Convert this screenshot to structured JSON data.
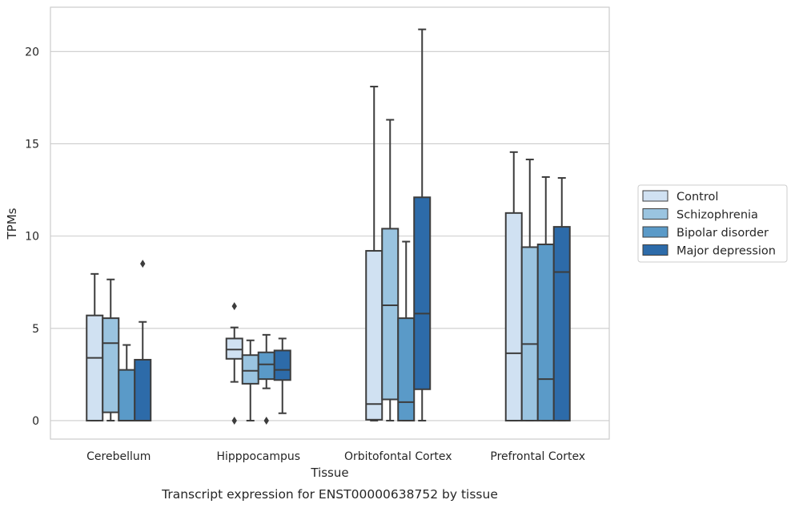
{
  "chart_data": {
    "type": "box",
    "caption": "Transcript expression for ENST00000638752 by tissue",
    "xlabel": "Tissue",
    "ylabel": "TPMs",
    "ylim": [
      -1,
      22.4
    ],
    "yticks": [
      0,
      5,
      10,
      15,
      20
    ],
    "grid": "horizontal",
    "legend_position": "right",
    "categories": [
      "Cerebellum",
      "Hipppocampus",
      "Orbitofontal Cortex",
      "Prefrontal Cortex"
    ],
    "series": [
      {
        "name": "Control",
        "color": "#d0e1f2",
        "boxes": [
          {
            "whislo": 0,
            "q1": 0,
            "med": 3.4,
            "q3": 5.7,
            "whishi": 7.95,
            "fliers": []
          },
          {
            "whislo": 2.1,
            "q1": 3.35,
            "med": 3.85,
            "q3": 4.45,
            "whishi": 5.05,
            "fliers": [
              0,
              6.2
            ]
          },
          {
            "whislo": 0,
            "q1": 0.05,
            "med": 0.9,
            "q3": 9.2,
            "whishi": 18.1,
            "fliers": []
          },
          {
            "whislo": 0,
            "q1": 0,
            "med": 3.65,
            "q3": 11.25,
            "whishi": 14.55,
            "fliers": []
          }
        ]
      },
      {
        "name": "Schizophrenia",
        "color": "#9ac4e0",
        "boxes": [
          {
            "whislo": 0,
            "q1": 0.45,
            "med": 4.2,
            "q3": 5.55,
            "whishi": 7.65,
            "fliers": []
          },
          {
            "whislo": 0,
            "q1": 2.0,
            "med": 2.7,
            "q3": 3.55,
            "whishi": 4.35,
            "fliers": []
          },
          {
            "whislo": 0,
            "q1": 1.15,
            "med": 6.25,
            "q3": 10.4,
            "whishi": 16.3,
            "fliers": []
          },
          {
            "whislo": 0,
            "q1": 0,
            "med": 4.15,
            "q3": 9.4,
            "whishi": 14.15,
            "fliers": []
          }
        ]
      },
      {
        "name": "Bipolar disorder",
        "color": "#5a9ac8",
        "boxes": [
          {
            "whislo": 0,
            "q1": 0,
            "med": 0,
            "q3": 2.75,
            "whishi": 4.1,
            "fliers": []
          },
          {
            "whislo": 1.75,
            "q1": 2.25,
            "med": 3.05,
            "q3": 3.7,
            "whishi": 4.65,
            "fliers": [
              0
            ]
          },
          {
            "whislo": 0,
            "q1": 0,
            "med": 1.0,
            "q3": 5.55,
            "whishi": 9.7,
            "fliers": []
          },
          {
            "whislo": 0,
            "q1": 0,
            "med": 2.25,
            "q3": 9.55,
            "whishi": 13.2,
            "fliers": []
          }
        ]
      },
      {
        "name": "Major depression",
        "color": "#2d6ba9",
        "boxes": [
          {
            "whislo": 0,
            "q1": 0,
            "med": 0,
            "q3": 3.3,
            "whishi": 5.35,
            "fliers": [
              8.5
            ]
          },
          {
            "whislo": 0.4,
            "q1": 2.2,
            "med": 2.75,
            "q3": 3.8,
            "whishi": 4.45,
            "fliers": []
          },
          {
            "whislo": 0,
            "q1": 1.7,
            "med": 5.8,
            "q3": 12.1,
            "whishi": 21.2,
            "fliers": []
          },
          {
            "whislo": 0,
            "q1": 0,
            "med": 8.05,
            "q3": 10.5,
            "whishi": 13.15,
            "fliers": []
          }
        ]
      }
    ]
  }
}
